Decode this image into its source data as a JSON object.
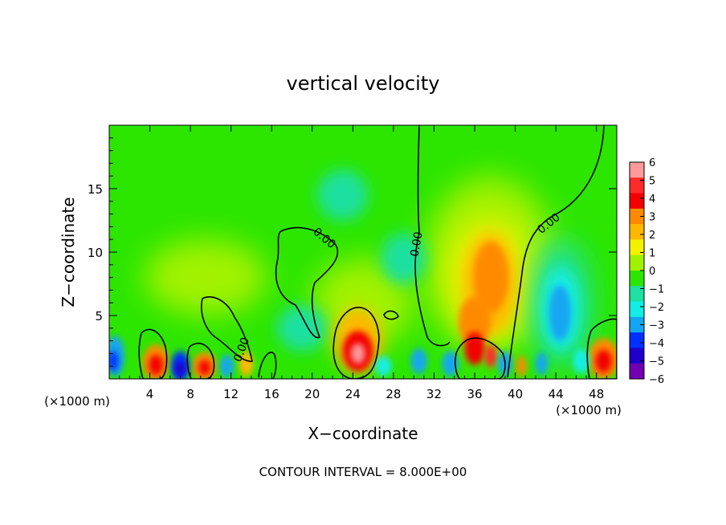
{
  "chart_data": {
    "type": "heatmap",
    "title": "vertical velocity",
    "xlabel": "X−coordinate",
    "ylabel": "Z−coordinate",
    "x_unit_left": "(×1000 m)",
    "x_unit_right": "(×1000 m)",
    "xlim": [
      0,
      50
    ],
    "ylim": [
      0,
      20
    ],
    "x_ticks": [
      4,
      8,
      12,
      16,
      20,
      24,
      28,
      32,
      36,
      40,
      44,
      48
    ],
    "y_ticks": [
      5,
      10,
      15
    ],
    "contour_label": "0.00",
    "footer": "CONTOUR INTERVAL = 8.000E+00",
    "colorbar": {
      "levels": [
        "6",
        "5",
        "4",
        "3",
        "2",
        "1",
        "0",
        "−1",
        "−2",
        "−3",
        "−4",
        "−5",
        "−6"
      ],
      "colors": [
        "#ff9a9a",
        "#ff2a2a",
        "#f20000",
        "#ff8a00",
        "#ffb800",
        "#f2f200",
        "#a2f200",
        "#2ce600",
        "#1ee0a0",
        "#12eee6",
        "#14a6f2",
        "#0030ff",
        "#2000c8",
        "#7000b0"
      ]
    },
    "features": [
      {
        "name": "updraft-x24",
        "x": 24.5,
        "z": 2.2,
        "value": 6
      },
      {
        "name": "updraft-x37",
        "x": 37.5,
        "z": 7.5,
        "value": 3
      },
      {
        "name": "downdraft-x44",
        "x": 44.5,
        "z": 5.5,
        "value": -3
      },
      {
        "name": "updraft-x48",
        "x": 48.5,
        "z": 1.6,
        "value": 5
      },
      {
        "name": "updraft-x5",
        "x": 4.6,
        "z": 1.2,
        "value": 4
      },
      {
        "name": "downdraft-x7",
        "x": 7.0,
        "z": 1.0,
        "value": -5
      },
      {
        "name": "updraft-x9",
        "x": 9.4,
        "z": 1.0,
        "value": 4
      },
      {
        "name": "downdraft-x1",
        "x": 0.6,
        "z": 2.0,
        "value": -4
      }
    ]
  }
}
